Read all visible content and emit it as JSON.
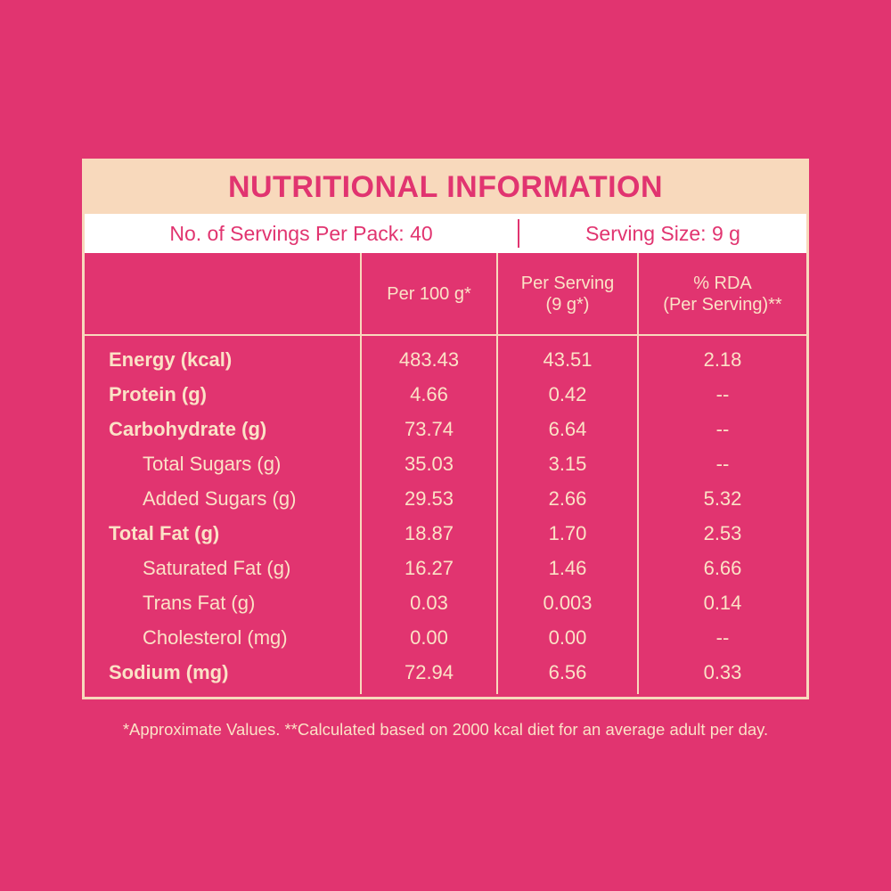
{
  "title": "NUTRITIONAL INFORMATION",
  "servings_per_pack": "No. of Servings Per Pack: 40",
  "serving_size": "Serving Size: 9 g",
  "table": {
    "headers": [
      [
        "Per 100 g*"
      ],
      [
        "Per Serving",
        "(9 g*)"
      ],
      [
        "% RDA",
        "(Per Serving)**"
      ]
    ],
    "rows": [
      {
        "label": "Energy (kcal)",
        "values": [
          "483.43",
          "43.51",
          "2.18"
        ]
      },
      {
        "label": "Protein (g)",
        "values": [
          "4.66",
          "0.42",
          "--"
        ]
      },
      {
        "label": "Carbohydrate (g)",
        "values": [
          "73.74",
          "6.64",
          "--"
        ],
        "sub_rows": [
          {
            "label": "Total Sugars (g)",
            "values": [
              "35.03",
              "3.15",
              "--"
            ]
          },
          {
            "label": "Added Sugars (g)",
            "values": [
              "29.53",
              "2.66",
              "5.32"
            ]
          }
        ]
      },
      {
        "label": "Total Fat (g)",
        "values": [
          "18.87",
          "1.70",
          "2.53"
        ],
        "sub_rows": [
          {
            "label": "Saturated Fat (g)",
            "values": [
              "16.27",
              "1.46",
              "6.66"
            ]
          },
          {
            "label": "Trans Fat (g)",
            "values": [
              "0.03",
              "0.003",
              "0.14"
            ]
          },
          {
            "label": "Cholesterol (mg)",
            "values": [
              "0.00",
              "0.00",
              "--"
            ]
          }
        ]
      },
      {
        "label": "Sodium (mg)",
        "values": [
          "72.94",
          "6.56",
          "0.33"
        ]
      }
    ]
  },
  "footnote": "*Approximate Values. **Calculated based on 2000 kcal diet for an average adult per day."
}
